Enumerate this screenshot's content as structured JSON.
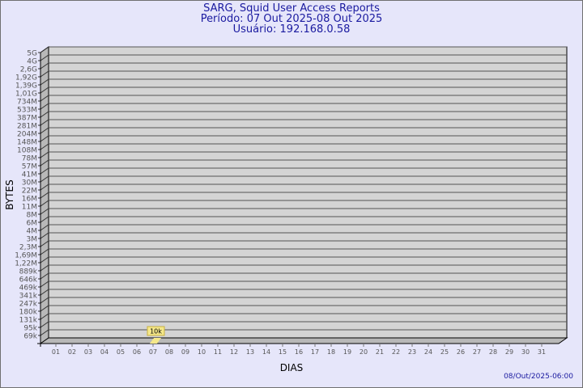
{
  "chart_data": {
    "type": "bar",
    "title": "SARG, Squid User Access Reports",
    "subtitle_period": "Período: 07 Out 2025-08 Out 2025",
    "subtitle_user": "Usuário: 192.168.0.58",
    "xlabel": "DIAS",
    "ylabel": "BYTES",
    "y_scale": "log",
    "y_tick_labels": [
      "5G",
      "4G",
      "2,6G",
      "1,92G",
      "1,39G",
      "1,01G",
      "734M",
      "533M",
      "387M",
      "281M",
      "204M",
      "148M",
      "108M",
      "78M",
      "57M",
      "41M",
      "30M",
      "22M",
      "16M",
      "11M",
      "8M",
      "6M",
      "4M",
      "3M",
      "2,3M",
      "1,69M",
      "1,22M",
      "889k",
      "646k",
      "469k",
      "341k",
      "247k",
      "180k",
      "131k",
      "95k",
      "69k"
    ],
    "categories": [
      "01",
      "02",
      "03",
      "04",
      "05",
      "06",
      "07",
      "08",
      "09",
      "10",
      "11",
      "12",
      "13",
      "14",
      "15",
      "16",
      "17",
      "18",
      "19",
      "20",
      "21",
      "22",
      "23",
      "24",
      "25",
      "26",
      "27",
      "28",
      "29",
      "30",
      "31"
    ],
    "bars": [
      {
        "category": "07",
        "value": 10000,
        "label": "10k"
      }
    ],
    "grid": true,
    "colors": {
      "background": "#e6e6fa",
      "panel": "#d4d4d4",
      "side": "#b8b8b8",
      "bar": "#f5e88a",
      "title": "#1a1aa0"
    }
  },
  "footer_timestamp": "08/Out/2025-06:00"
}
